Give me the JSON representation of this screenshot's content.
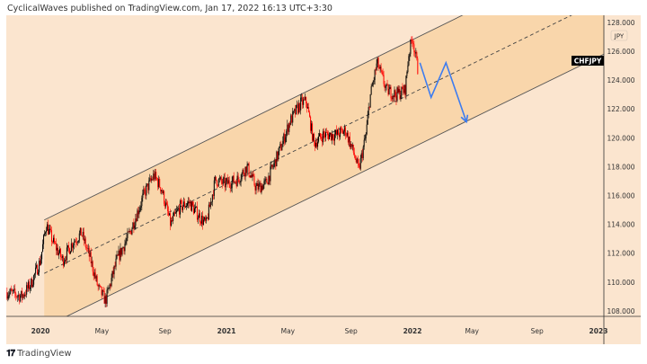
{
  "header": {
    "text": "CyclicalWaves published on TradingView.com, Jan 17, 2022 16:13 UTC+3:30"
  },
  "footer": {
    "logo_text": "TradingView"
  },
  "colors": {
    "background": "#fbe5cf",
    "channel_fill": "#f9d6ab",
    "up": "#000000",
    "down": "#ff0000",
    "projection": "#3d7cf0",
    "lines": "#555555"
  },
  "chart_data": {
    "type": "candlestick",
    "symbol": "CHFJPY",
    "currency": "JPY",
    "xlim": [
      2019.816,
      2023.029
    ],
    "ylim": [
      107.62,
      128.49
    ],
    "y_ticks": [
      "108.000",
      "110.000",
      "112.000",
      "114.000",
      "116.000",
      "118.000",
      "120.000",
      "122.000",
      "124.000",
      "126.000",
      "128.000"
    ],
    "y_tick_values": [
      108,
      110,
      112,
      114,
      116,
      118,
      120,
      122,
      124,
      126,
      128
    ],
    "x_ticks": [
      {
        "label": "2020",
        "t": 2020.0
      },
      {
        "label": "May",
        "t": 2020.33
      },
      {
        "label": "Sep",
        "t": 2020.67
      },
      {
        "label": "2021",
        "t": 2021.0
      },
      {
        "label": "May",
        "t": 2021.33
      },
      {
        "label": "Sep",
        "t": 2021.67
      },
      {
        "label": "2022",
        "t": 2022.0
      },
      {
        "label": "May",
        "t": 2022.32
      },
      {
        "label": "Sep",
        "t": 2022.67
      },
      {
        "label": "2023",
        "t": 2023.0
      }
    ],
    "price_path": [
      [
        2019.82,
        109.3
      ],
      [
        2019.9,
        109.0
      ],
      [
        2019.95,
        109.9
      ],
      [
        2020.0,
        111.5
      ],
      [
        2020.03,
        114.0
      ],
      [
        2020.07,
        112.7
      ],
      [
        2020.12,
        111.5
      ],
      [
        2020.17,
        112.7
      ],
      [
        2020.22,
        113.4
      ],
      [
        2020.27,
        111.5
      ],
      [
        2020.31,
        109.6
      ],
      [
        2020.35,
        108.7
      ],
      [
        2020.41,
        111.5
      ],
      [
        2020.48,
        113.4
      ],
      [
        2020.56,
        116.2
      ],
      [
        2020.61,
        117.4
      ],
      [
        2020.65,
        116.5
      ],
      [
        2020.7,
        114.0
      ],
      [
        2020.75,
        115.2
      ],
      [
        2020.8,
        115.5
      ],
      [
        2020.85,
        114.6
      ],
      [
        2020.89,
        114.0
      ],
      [
        2020.94,
        117.1
      ],
      [
        2020.99,
        116.8
      ],
      [
        2021.06,
        117.1
      ],
      [
        2021.11,
        118.0
      ],
      [
        2021.16,
        116.5
      ],
      [
        2021.21,
        116.8
      ],
      [
        2021.26,
        118.3
      ],
      [
        2021.3,
        119.6
      ],
      [
        2021.34,
        121.1
      ],
      [
        2021.4,
        122.4
      ],
      [
        2021.43,
        122.5
      ],
      [
        2021.47,
        119.6
      ],
      [
        2021.52,
        120.2
      ],
      [
        2021.59,
        120.2
      ],
      [
        2021.64,
        120.5
      ],
      [
        2021.69,
        118.7
      ],
      [
        2021.71,
        117.7
      ],
      [
        2021.75,
        120.2
      ],
      [
        2021.77,
        122.7
      ],
      [
        2021.81,
        125.2
      ],
      [
        2021.86,
        123.3
      ],
      [
        2021.91,
        123.0
      ],
      [
        2021.96,
        123.3
      ],
      [
        2021.98,
        125.8
      ],
      [
        2022.0,
        127.0
      ],
      [
        2022.03,
        124.6
      ]
    ],
    "channel": {
      "upper": [
        [
          2020.02,
          114.3
        ],
        [
          2023.03,
          133.3
        ]
      ],
      "middle": [
        [
          2020.02,
          110.6
        ],
        [
          2023.03,
          129.6
        ]
      ],
      "lower": [
        [
          2020.02,
          106.86
        ],
        [
          2023.03,
          125.8
        ]
      ],
      "start": 2020.02
    },
    "projection": [
      [
        2022.04,
        125.2
      ],
      [
        2022.1,
        122.8
      ],
      [
        2022.18,
        125.2
      ],
      [
        2022.29,
        121.1
      ]
    ]
  }
}
